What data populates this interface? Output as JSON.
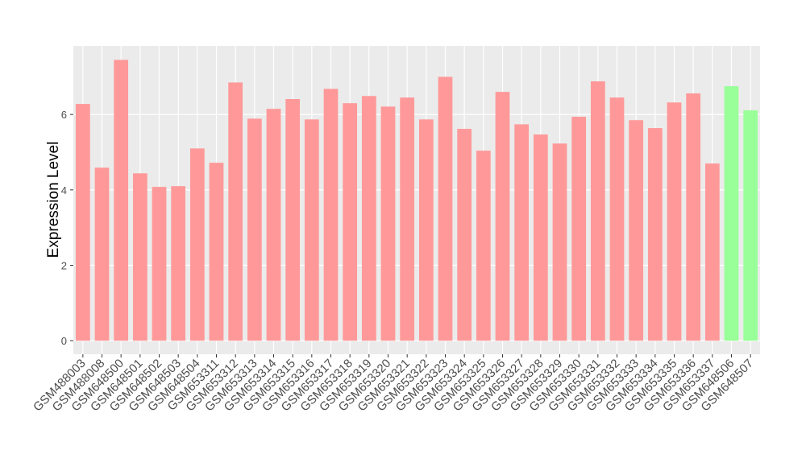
{
  "chart_data": {
    "type": "bar",
    "y_label": "Expression Level",
    "categories": [
      "GSM488003",
      "GSM488008",
      "GSM648500",
      "GSM648501",
      "GSM648502",
      "GSM648503",
      "GSM648504",
      "GSM653311",
      "GSM653312",
      "GSM653313",
      "GSM653314",
      "GSM653315",
      "GSM653316",
      "GSM653317",
      "GSM653318",
      "GSM653319",
      "GSM653320",
      "GSM653321",
      "GSM653322",
      "GSM653323",
      "GSM653324",
      "GSM653325",
      "GSM653326",
      "GSM653327",
      "GSM653328",
      "GSM653329",
      "GSM653330",
      "GSM653331",
      "GSM653332",
      "GSM653333",
      "GSM653334",
      "GSM653335",
      "GSM653336",
      "GSM653337",
      "GSM648506",
      "GSM648507"
    ],
    "values": [
      6.28,
      4.59,
      7.45,
      4.44,
      4.08,
      4.1,
      5.1,
      4.72,
      6.85,
      5.89,
      6.15,
      6.41,
      5.87,
      6.68,
      6.3,
      6.49,
      6.21,
      6.45,
      5.87,
      7.0,
      5.62,
      5.04,
      6.6,
      5.74,
      5.47,
      5.23,
      5.94,
      6.88,
      6.45,
      5.85,
      5.64,
      6.32,
      6.56,
      4.7,
      6.75,
      6.11
    ],
    "colors": [
      "#ff9999",
      "#ff9999",
      "#ff9999",
      "#ff9999",
      "#ff9999",
      "#ff9999",
      "#ff9999",
      "#ff9999",
      "#ff9999",
      "#ff9999",
      "#ff9999",
      "#ff9999",
      "#ff9999",
      "#ff9999",
      "#ff9999",
      "#ff9999",
      "#ff9999",
      "#ff9999",
      "#ff9999",
      "#ff9999",
      "#ff9999",
      "#ff9999",
      "#ff9999",
      "#ff9999",
      "#ff9999",
      "#ff9999",
      "#ff9999",
      "#ff9999",
      "#ff9999",
      "#ff9999",
      "#ff9999",
      "#ff9999",
      "#ff9999",
      "#ff9999",
      "#99ff99",
      "#99ff99"
    ],
    "ylim": [
      -0.36,
      7.82
    ],
    "yticks": [
      0,
      2,
      4,
      6
    ],
    "grid": true
  }
}
